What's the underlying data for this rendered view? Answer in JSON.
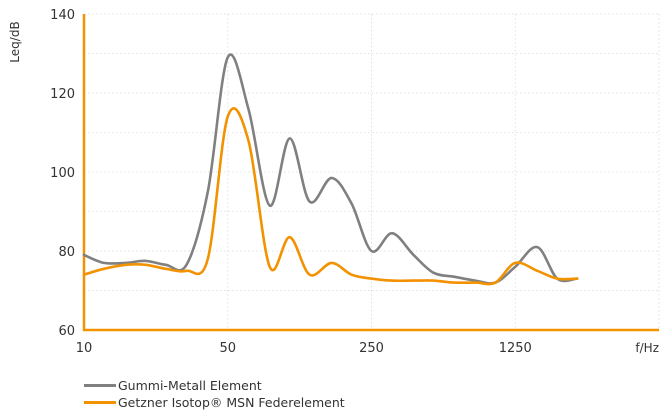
{
  "chart_data": {
    "type": "line",
    "xlabel": "f/Hz",
    "ylabel": "Leq/dB",
    "x_scale": "log",
    "x_ticks": [
      10,
      50,
      250,
      1250
    ],
    "xlim": [
      10,
      6250
    ],
    "ylim": [
      60,
      140
    ],
    "y_ticks": [
      60,
      80,
      100,
      120,
      140
    ],
    "grid": true,
    "legend_position": "bottom-left",
    "series": [
      {
        "name": "Gummi-Metall Element",
        "color": "#808080",
        "x": [
          10,
          12.5,
          16,
          20,
          25,
          31.5,
          40,
          50,
          63,
          80,
          100,
          125,
          160,
          200,
          250,
          315,
          400,
          500,
          630,
          800,
          1000,
          1250,
          1600,
          2000,
          2500
        ],
        "y": [
          79,
          77,
          77,
          77.5,
          76.5,
          76.5,
          95,
          129,
          116,
          91.5,
          108.5,
          92.5,
          98.5,
          92,
          80,
          84.5,
          79,
          74.5,
          73.5,
          72.5,
          72,
          76,
          81,
          73,
          73
        ]
      },
      {
        "name": "Getzner Isotop® MSN Federelement",
        "color": "#f39200",
        "x": [
          10,
          12.5,
          16,
          20,
          25,
          31.5,
          40,
          50,
          63,
          80,
          100,
          125,
          160,
          200,
          250,
          315,
          400,
          500,
          630,
          800,
          1000,
          1250,
          1600,
          2000,
          2500
        ],
        "y": [
          74,
          75.5,
          76.5,
          76.5,
          75.5,
          75,
          78,
          114,
          108,
          76,
          83.5,
          74,
          77,
          74,
          73,
          72.5,
          72.5,
          72.5,
          72,
          72,
          72,
          77,
          75,
          73,
          73
        ]
      }
    ]
  }
}
